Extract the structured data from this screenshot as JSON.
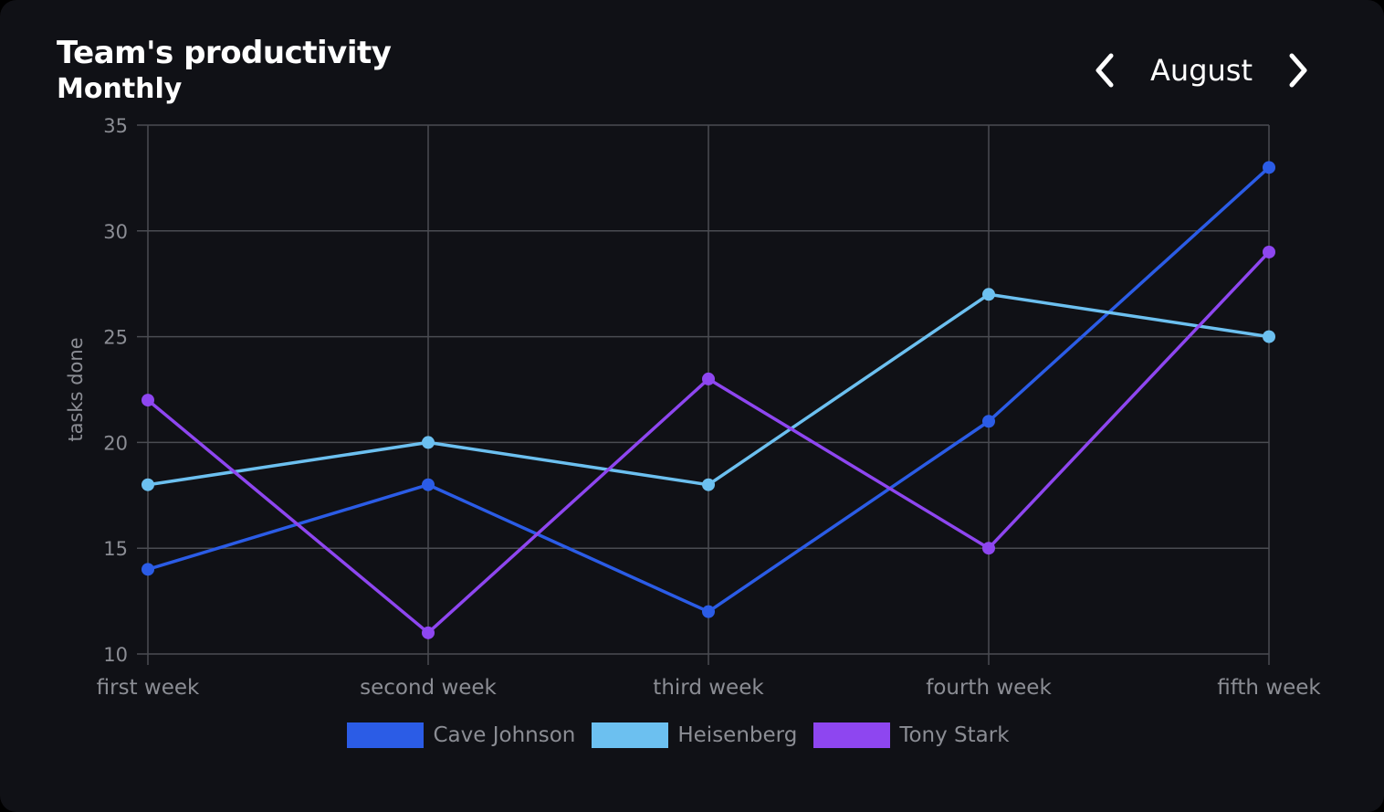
{
  "header": {
    "title": "Team's productivity",
    "subtitle": "Monthly",
    "month": "August",
    "prev_icon": "chevron-left-icon",
    "next_icon": "chevron-right-icon"
  },
  "chart_data": {
    "type": "line",
    "title": "Team's productivity",
    "subtitle": "Monthly",
    "xlabel": "",
    "ylabel": "tasks done",
    "categories": [
      "first week",
      "second week",
      "third week",
      "fourth week",
      "fifth week"
    ],
    "ylim": [
      10,
      35
    ],
    "yticks": [
      10,
      15,
      20,
      25,
      30,
      35
    ],
    "grid": true,
    "legend_position": "bottom",
    "series": [
      {
        "name": "Cave Johnson",
        "color": "#2b5ce6",
        "values": [
          14,
          18,
          12,
          21,
          33
        ]
      },
      {
        "name": "Heisenberg",
        "color": "#6cc0f0",
        "values": [
          18,
          20,
          18,
          27,
          25
        ]
      },
      {
        "name": "Tony Stark",
        "color": "#8e46f0",
        "values": [
          22,
          11,
          23,
          15,
          29
        ]
      }
    ]
  },
  "colors": {
    "background": "#101116",
    "grid": "#4a4c52",
    "axis_text": "#8b8d94"
  }
}
